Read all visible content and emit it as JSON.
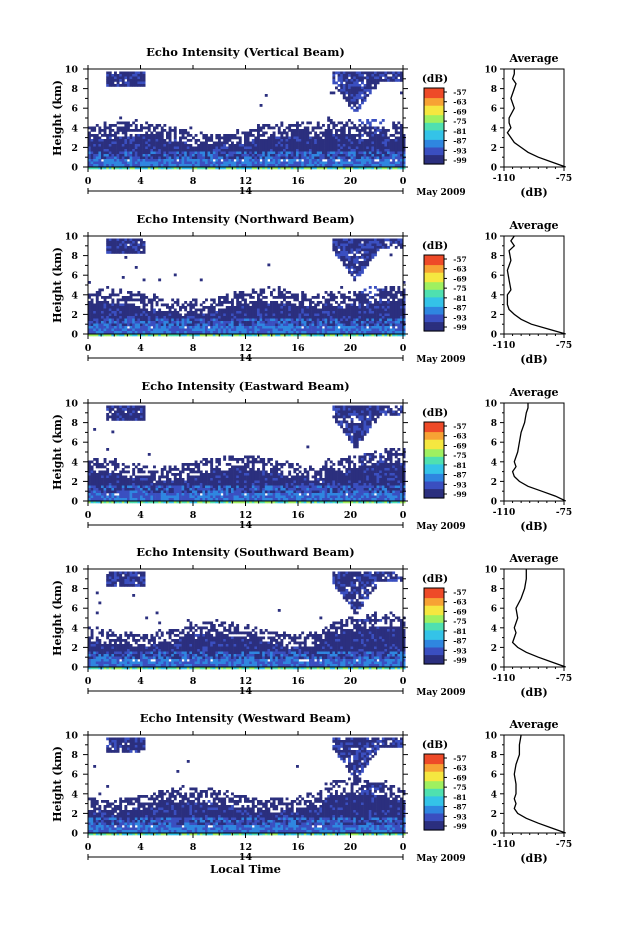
{
  "chart_data": [
    {
      "type": "heatmap",
      "title": "Echo Intensity (Vertical Beam)",
      "ylabel": "Height (km)",
      "xticks": [
        "0",
        "4",
        "8",
        "12",
        "16",
        "20",
        "0"
      ],
      "yticks": [
        "0",
        "2",
        "4",
        "6",
        "8",
        "10"
      ],
      "day_label": "14",
      "date_label": "May 2009",
      "colorbar_label": "(dB)",
      "colorbar_ticks": [
        "-57",
        "-63",
        "-69",
        "-75",
        "-81",
        "-87",
        "-93",
        "-99"
      ],
      "profile": {
        "title": "Average",
        "xlabel": "(dB)",
        "xticks": [
          "-110",
          "-75"
        ],
        "yticks": [
          "0",
          "2",
          "4",
          "6",
          "8",
          "10"
        ],
        "points": [
          [
            -74,
            0
          ],
          [
            -82,
            0.5
          ],
          [
            -90,
            1
          ],
          [
            -96,
            1.5
          ],
          [
            -100,
            2
          ],
          [
            -104,
            2.5
          ],
          [
            -106,
            3
          ],
          [
            -108,
            3.5
          ],
          [
            -106,
            4
          ],
          [
            -107,
            4.5
          ],
          [
            -107,
            5
          ],
          [
            -104,
            6
          ],
          [
            -106,
            7
          ],
          [
            -104,
            8
          ],
          [
            -103,
            8.5
          ],
          [
            -105,
            9
          ],
          [
            -104,
            9.5
          ],
          [
            -104,
            10
          ]
        ]
      }
    },
    {
      "type": "heatmap",
      "title": "Echo Intensity (Northward Beam)",
      "ylabel": "Height (km)",
      "xticks": [
        "0",
        "4",
        "8",
        "12",
        "16",
        "20",
        "0"
      ],
      "yticks": [
        "0",
        "2",
        "4",
        "6",
        "8",
        "10"
      ],
      "day_label": "14",
      "date_label": "May 2009",
      "colorbar_label": "(dB)",
      "colorbar_ticks": [
        "-57",
        "-63",
        "-69",
        "-75",
        "-81",
        "-87",
        "-93",
        "-99"
      ],
      "profile": {
        "title": "Average",
        "xlabel": "(dB)",
        "xticks": [
          "-110",
          "-75"
        ],
        "yticks": [
          "0",
          "2",
          "4",
          "6",
          "8",
          "10"
        ],
        "points": [
          [
            -74,
            0
          ],
          [
            -84,
            0.5
          ],
          [
            -94,
            1
          ],
          [
            -100,
            1.5
          ],
          [
            -104,
            2
          ],
          [
            -107,
            2.5
          ],
          [
            -108,
            3
          ],
          [
            -108,
            4
          ],
          [
            -106,
            4.5
          ],
          [
            -107,
            5.5
          ],
          [
            -108,
            6.5
          ],
          [
            -106,
            7.5
          ],
          [
            -107,
            8.5
          ],
          [
            -104,
            9
          ],
          [
            -106,
            9.5
          ],
          [
            -104,
            10
          ]
        ]
      }
    },
    {
      "type": "heatmap",
      "title": "Echo Intensity (Eastward Beam)",
      "ylabel": "Height (km)",
      "xticks": [
        "0",
        "4",
        "8",
        "12",
        "16",
        "20",
        "0"
      ],
      "yticks": [
        "0",
        "2",
        "4",
        "6",
        "8",
        "10"
      ],
      "day_label": "14",
      "date_label": "May 2009",
      "colorbar_label": "(dB)",
      "colorbar_ticks": [
        "-57",
        "-63",
        "-69",
        "-75",
        "-81",
        "-87",
        "-93",
        "-99"
      ],
      "profile": {
        "title": "Average",
        "xlabel": "(dB)",
        "xticks": [
          "-110",
          "-75"
        ],
        "yticks": [
          "0",
          "2",
          "4",
          "6",
          "8",
          "10"
        ],
        "points": [
          [
            -74,
            0
          ],
          [
            -80,
            0.5
          ],
          [
            -88,
            1
          ],
          [
            -96,
            1.5
          ],
          [
            -101,
            2
          ],
          [
            -104,
            2.5
          ],
          [
            -105,
            3
          ],
          [
            -103,
            3.5
          ],
          [
            -104,
            4
          ],
          [
            -102,
            5
          ],
          [
            -101,
            6
          ],
          [
            -100,
            7
          ],
          [
            -98,
            8
          ],
          [
            -97,
            9
          ],
          [
            -96,
            9.5
          ],
          [
            -96,
            10
          ]
        ]
      }
    },
    {
      "type": "heatmap",
      "title": "Echo Intensity (Southward Beam)",
      "ylabel": "Height (km)",
      "xticks": [
        "0",
        "4",
        "8",
        "12",
        "16",
        "20",
        "0"
      ],
      "yticks": [
        "0",
        "2",
        "4",
        "6",
        "8",
        "10"
      ],
      "day_label": "14",
      "date_label": "May 2009",
      "colorbar_label": "(dB)",
      "colorbar_ticks": [
        "-57",
        "-63",
        "-69",
        "-75",
        "-81",
        "-87",
        "-93",
        "-99"
      ],
      "profile": {
        "title": "Average",
        "xlabel": "(dB)",
        "xticks": [
          "-110",
          "-75"
        ],
        "yticks": [
          "0",
          "2",
          "4",
          "6",
          "8",
          "10"
        ],
        "points": [
          [
            -74,
            0
          ],
          [
            -82,
            0.5
          ],
          [
            -90,
            1
          ],
          [
            -97,
            1.5
          ],
          [
            -102,
            2
          ],
          [
            -105,
            2.5
          ],
          [
            -104,
            3
          ],
          [
            -103,
            3.5
          ],
          [
            -104,
            4
          ],
          [
            -102,
            5
          ],
          [
            -103,
            6
          ],
          [
            -100,
            7
          ],
          [
            -98,
            8
          ],
          [
            -97,
            9
          ],
          [
            -97,
            10
          ]
        ]
      }
    },
    {
      "type": "heatmap",
      "title": "Echo Intensity (Westward Beam)",
      "ylabel": "Height (km)",
      "xlabel": "Local Time",
      "xticks": [
        "0",
        "4",
        "8",
        "12",
        "16",
        "20",
        "0"
      ],
      "yticks": [
        "0",
        "2",
        "4",
        "6",
        "8",
        "10"
      ],
      "day_label": "14",
      "date_label": "May 2009",
      "colorbar_label": "(dB)",
      "colorbar_ticks": [
        "-57",
        "-63",
        "-69",
        "-75",
        "-81",
        "-87",
        "-93",
        "-99"
      ],
      "profile": {
        "title": "Average",
        "xlabel": "(dB)",
        "xticks": [
          "-110",
          "-75"
        ],
        "yticks": [
          "0",
          "2",
          "4",
          "6",
          "8",
          "10"
        ],
        "points": [
          [
            -74,
            0
          ],
          [
            -82,
            0.5
          ],
          [
            -90,
            1
          ],
          [
            -97,
            1.5
          ],
          [
            -102,
            2
          ],
          [
            -104,
            2.5
          ],
          [
            -103,
            3
          ],
          [
            -104,
            3.5
          ],
          [
            -103,
            4
          ],
          [
            -103,
            5
          ],
          [
            -104,
            6
          ],
          [
            -103,
            7
          ],
          [
            -101,
            8
          ],
          [
            -101,
            9
          ],
          [
            -100,
            10
          ]
        ]
      }
    }
  ],
  "colorscale": [
    "#2b2f7e",
    "#3a4fc0",
    "#2f86e0",
    "#34c3e8",
    "#4fe0b0",
    "#9ff060",
    "#f5e740",
    "#f7a234",
    "#ee4a28"
  ]
}
